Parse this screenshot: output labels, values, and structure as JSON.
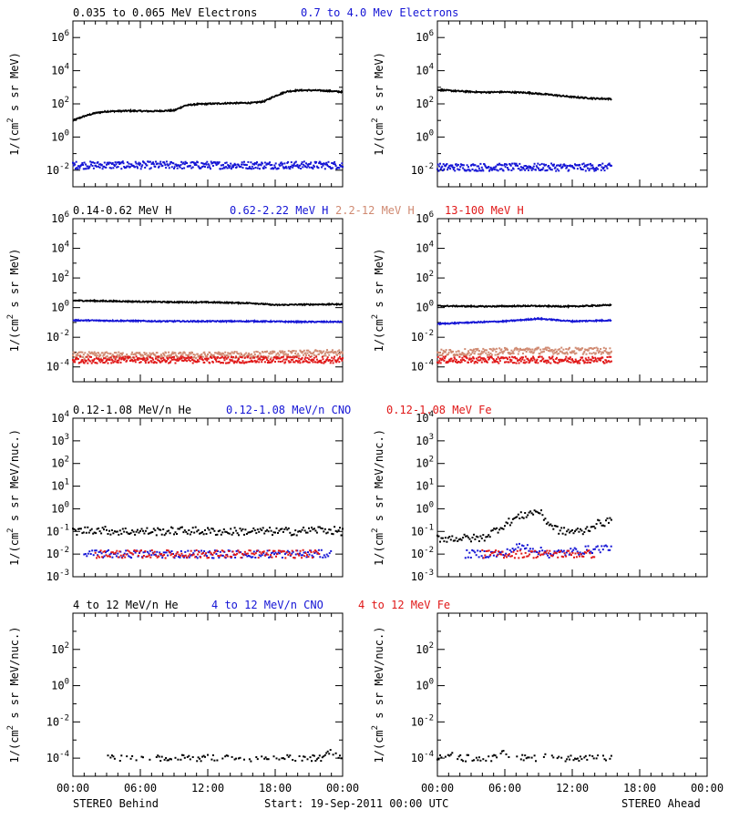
{
  "footer": {
    "left_label": "STEREO Behind",
    "center_label": "Start: 19-Sep-2011 00:00 UTC",
    "right_label": "STEREO Ahead"
  },
  "time_axis": {
    "tick_labels": [
      "00:00",
      "06:00",
      "12:00",
      "18:00",
      "00:00"
    ]
  },
  "colors": {
    "black": "#000000",
    "blue": "#1515d5",
    "salmon": "#d08a72",
    "red": "#e01818"
  },
  "chart_data": [
    {
      "type": "scatter",
      "panel_group": "electrons",
      "legend": [
        {
          "label": "0.035 to 0.065 MeV Electrons",
          "color": "#000000"
        },
        {
          "label": "0.7 to 4.0 Mev Electrons",
          "color": "#1515d5"
        }
      ],
      "ylabel": "1/(cm² s sr MeV)",
      "ylabel_parts": [
        "1/(cm",
        "2",
        " s sr MeV)"
      ],
      "yscale": "log",
      "ylim_exp": [
        -3,
        7
      ],
      "ytick_exponents": [
        -2,
        0,
        2,
        4,
        6
      ],
      "xlim_hours": [
        0,
        24
      ],
      "behind": [
        {
          "color": "#000000",
          "x": [
            0,
            1,
            2,
            3,
            5,
            7,
            9,
            10,
            11,
            12,
            14,
            16,
            17,
            18,
            19,
            20,
            21,
            22,
            23,
            24
          ],
          "y": [
            10,
            18,
            28,
            35,
            38,
            36,
            40,
            80,
            95,
            100,
            110,
            115,
            140,
            300,
            550,
            650,
            660,
            640,
            590,
            520
          ]
        },
        {
          "color": "#1515d5",
          "x": [
            0,
            2,
            4,
            6,
            8,
            10,
            12,
            14,
            16,
            18,
            20,
            22,
            24
          ],
          "y": [
            0.02,
            0.02,
            0.02,
            0.02,
            0.02,
            0.02,
            0.02,
            0.02,
            0.02,
            0.02,
            0.02,
            0.02,
            0.02
          ],
          "scatter": true
        }
      ],
      "ahead": [
        {
          "color": "#000000",
          "x": [
            0,
            2,
            4,
            6,
            8,
            10,
            12,
            14,
            15.5
          ],
          "y": [
            700,
            580,
            500,
            520,
            470,
            360,
            260,
            210,
            200
          ]
        },
        {
          "color": "#1515d5",
          "x": [
            0,
            2,
            4,
            6,
            8,
            10,
            12,
            14,
            15.5
          ],
          "y": [
            0.015,
            0.015,
            0.015,
            0.015,
            0.015,
            0.015,
            0.015,
            0.015,
            0.015
          ],
          "scatter": true
        }
      ]
    },
    {
      "type": "scatter",
      "panel_group": "protons",
      "legend": [
        {
          "label": "0.14-0.62 MeV H",
          "color": "#000000"
        },
        {
          "label": "0.62-2.22 MeV H",
          "color": "#1515d5"
        },
        {
          "label": "2.2-12 MeV H",
          "color": "#d08a72"
        },
        {
          "label": "13-100 MeV H",
          "color": "#e01818"
        }
      ],
      "ylabel": "1/(cm² s sr MeV)",
      "ylabel_parts": [
        "1/(cm",
        "2",
        " s sr MeV)"
      ],
      "yscale": "log",
      "ylim_exp": [
        -5,
        6
      ],
      "ytick_exponents": [
        -4,
        -2,
        0,
        2,
        4,
        6
      ],
      "xlim_hours": [
        0,
        24
      ],
      "behind": [
        {
          "color": "#000000",
          "x": [
            0,
            4,
            8,
            12,
            16,
            18,
            20,
            24
          ],
          "y": [
            3,
            2.7,
            2.4,
            2.3,
            2.0,
            1.5,
            1.6,
            1.7
          ]
        },
        {
          "color": "#1515d5",
          "x": [
            0,
            4,
            8,
            12,
            16,
            20,
            24
          ],
          "y": [
            0.14,
            0.13,
            0.12,
            0.12,
            0.12,
            0.11,
            0.11
          ]
        },
        {
          "color": "#d08a72",
          "x": [
            0,
            6,
            12,
            18,
            24
          ],
          "y": [
            0.0006,
            0.0006,
            0.0006,
            0.0007,
            0.0009
          ],
          "scatter": true
        },
        {
          "color": "#e01818",
          "x": [
            0,
            6,
            12,
            18,
            24
          ],
          "y": [
            0.0003,
            0.0003,
            0.0003,
            0.0003,
            0.0003
          ],
          "scatter": true
        }
      ],
      "ahead": [
        {
          "color": "#000000",
          "x": [
            0,
            4,
            8,
            12,
            15.5
          ],
          "y": [
            1.3,
            1.2,
            1.3,
            1.2,
            1.5
          ]
        },
        {
          "color": "#1515d5",
          "x": [
            0,
            3,
            6,
            9,
            12,
            15.5
          ],
          "y": [
            0.08,
            0.1,
            0.12,
            0.18,
            0.12,
            0.14
          ]
        },
        {
          "color": "#d08a72",
          "x": [
            0,
            4,
            8,
            12,
            15.5
          ],
          "y": [
            0.0009,
            0.001,
            0.0013,
            0.0012,
            0.0012
          ],
          "scatter": true
        },
        {
          "color": "#e01818",
          "x": [
            0,
            4,
            8,
            12,
            15.5
          ],
          "y": [
            0.0003,
            0.0003,
            0.0003,
            0.0003,
            0.0003
          ],
          "scatter": true
        }
      ]
    },
    {
      "type": "scatter",
      "panel_group": "heavy_low",
      "legend": [
        {
          "label": "0.12-1.08 MeV/n He",
          "color": "#000000"
        },
        {
          "label": "0.12-1.08 MeV/n CNO",
          "color": "#1515d5"
        },
        {
          "label": "0.12-1.08 MeV Fe",
          "color": "#e01818"
        }
      ],
      "ylabel": "1/(cm² s sr MeV/nuc.)",
      "ylabel_parts": [
        "1/(cm",
        "2",
        " s sr MeV/nuc.)"
      ],
      "yscale": "log",
      "ylim_exp": [
        -3,
        4
      ],
      "ytick_exponents": [
        -3,
        -2,
        -1,
        0,
        1,
        2,
        3,
        4
      ],
      "xlim_hours": [
        0,
        24
      ],
      "behind": [
        {
          "color": "#000000",
          "x": [
            0,
            2,
            4,
            6,
            8,
            10,
            12,
            14,
            16,
            18,
            20,
            22,
            24
          ],
          "y": [
            0.1,
            0.12,
            0.1,
            0.1,
            0.1,
            0.11,
            0.1,
            0.1,
            0.1,
            0.1,
            0.1,
            0.12,
            0.1
          ],
          "scatter": true
        },
        {
          "color": "#1515d5",
          "x": [
            1,
            3,
            9,
            11,
            17,
            19,
            23
          ],
          "y": [
            0.01,
            0.01,
            0.01,
            0.01,
            0.01,
            0.01,
            0.01
          ],
          "scatter": true
        },
        {
          "color": "#e01818",
          "x": [
            2,
            5,
            8,
            10,
            13,
            16,
            20,
            22
          ],
          "y": [
            0.01,
            0.01,
            0.01,
            0.01,
            0.01,
            0.01,
            0.01,
            0.01
          ],
          "scatter": true
        }
      ],
      "ahead": [
        {
          "color": "#000000",
          "x": [
            0,
            2,
            4,
            6,
            7,
            8,
            9,
            10,
            11,
            12,
            13,
            14,
            15.5
          ],
          "y": [
            0.05,
            0.05,
            0.05,
            0.2,
            0.4,
            0.6,
            0.8,
            0.2,
            0.1,
            0.1,
            0.1,
            0.2,
            0.3
          ],
          "scatter": true
        },
        {
          "color": "#1515d5",
          "x": [
            2.5,
            6,
            7,
            8,
            10,
            15.5
          ],
          "y": [
            0.01,
            0.01,
            0.02,
            0.02,
            0.01,
            0.02
          ],
          "scatter": true
        },
        {
          "color": "#e01818",
          "x": [
            4,
            5,
            6,
            7,
            8,
            9,
            10,
            11,
            12,
            13,
            14
          ],
          "y": [
            0.01,
            0.01,
            0.01,
            0.01,
            0.01,
            0.01,
            0.01,
            0.01,
            0.01,
            0.01,
            0.01
          ],
          "scatter": true
        }
      ]
    },
    {
      "type": "scatter",
      "panel_group": "heavy_high",
      "legend": [
        {
          "label": "4 to 12 MeV/n He",
          "color": "#000000"
        },
        {
          "label": "4 to 12 MeV/n CNO",
          "color": "#1515d5"
        },
        {
          "label": "4 to 12 MeV Fe",
          "color": "#e01818"
        }
      ],
      "ylabel": "1/(cm² s sr MeV/nuc.)",
      "ylabel_parts": [
        "1/(cm",
        "2",
        " s sr MeV/nuc.)"
      ],
      "yscale": "log",
      "ylim_exp": [
        -5,
        4
      ],
      "ytick_exponents": [
        -4,
        -2,
        0,
        2
      ],
      "xlim_hours": [
        0,
        24
      ],
      "behind": [
        {
          "color": "#000000",
          "x": [
            3,
            4,
            6,
            9,
            10,
            12,
            13.5,
            15,
            16,
            17,
            18,
            19,
            20,
            21,
            22,
            23,
            24
          ],
          "y": [
            0.0001,
            0.0001,
            0.0001,
            0.0001,
            0.0001,
            0.0001,
            0.0001,
            0.0001,
            0.0001,
            0.0001,
            0.0001,
            0.0001,
            0.0001,
            0.0001,
            0.0001,
            0.0002,
            0.0001
          ],
          "scatter": true
        }
      ],
      "ahead": [
        {
          "color": "#000000",
          "x": [
            0,
            1,
            2,
            3,
            4,
            5,
            6,
            7,
            8,
            9,
            10,
            11,
            12,
            13,
            14,
            15,
            15.5
          ],
          "y": [
            0.0001,
            0.0002,
            0.0001,
            0.0001,
            0.0001,
            0.0001,
            0.0002,
            0.0001,
            0.0001,
            0.0001,
            0.0002,
            0.0001,
            0.0001,
            0.0001,
            0.0001,
            0.0001,
            0.0001
          ],
          "scatter": true
        }
      ]
    }
  ]
}
